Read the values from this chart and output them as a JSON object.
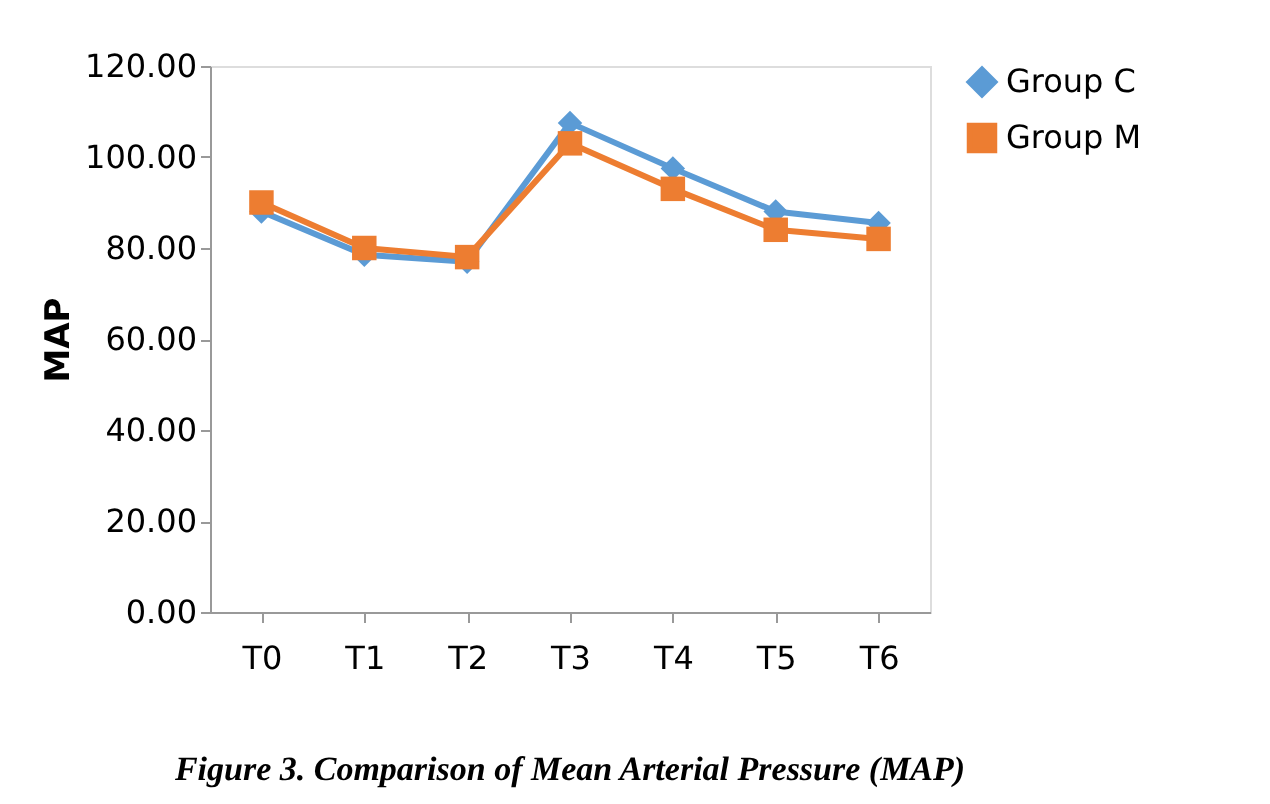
{
  "chart_data": {
    "type": "line",
    "ylabel": "MAP",
    "categories": [
      "T0",
      "T1",
      "T2",
      "T3",
      "T4",
      "T5",
      "T6"
    ],
    "series": [
      {
        "name": "Group C",
        "color": "#5b9bd5",
        "marker": "diamond",
        "values": [
          88,
          78.5,
          77,
          107.5,
          97.5,
          88,
          85.5
        ]
      },
      {
        "name": "Group M",
        "color": "#ed7d31",
        "marker": "square",
        "values": [
          90,
          80,
          78,
          103,
          93,
          84,
          82
        ]
      }
    ],
    "ylim": [
      0,
      120
    ],
    "yticks": [
      {
        "value": 0,
        "label": "0.00"
      },
      {
        "value": 20,
        "label": "20.00"
      },
      {
        "value": 40,
        "label": "40.00"
      },
      {
        "value": 60,
        "label": "60.00"
      },
      {
        "value": 80,
        "label": "80.00"
      },
      {
        "value": 100,
        "label": "100.00"
      },
      {
        "value": 120,
        "label": "120.00"
      }
    ],
    "grid": false,
    "legend": "right",
    "line_style": "solid",
    "annotations": [
      "Figure 3. Comparison of Mean Arterial Pressure (MAP)"
    ]
  }
}
